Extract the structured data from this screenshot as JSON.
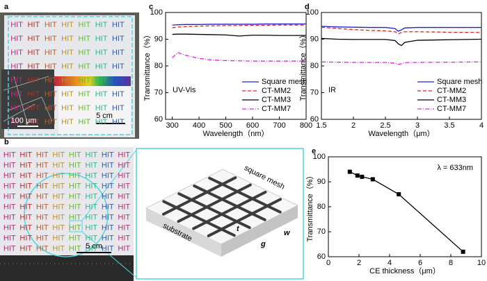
{
  "panels": {
    "a": "a",
    "b": "b"
  },
  "photos": {
    "hit_text": "HIT",
    "scale_a": "5 cm",
    "scale_micro": "100 μm",
    "scale_b": "5 cm"
  },
  "schematic": {
    "mesh": "square mesh",
    "substrate": "substrate",
    "t": "t",
    "w": "w",
    "g": "g"
  },
  "chart_data": [
    {
      "type": "line",
      "panel": "c",
      "xlabel": "Wavelength（nm）",
      "ylabel": "Transmittance（%）",
      "annotation": "UV-Vis",
      "x": [
        300,
        320,
        350,
        400,
        450,
        500,
        550,
        600,
        650,
        700,
        750,
        800
      ],
      "xlim": [
        275,
        800
      ],
      "xticks": [
        300,
        400,
        500,
        600,
        700,
        800
      ],
      "ylim": [
        60,
        100
      ],
      "yticks": [
        60,
        70,
        80,
        90,
        100
      ],
      "legend": "lower right",
      "series": [
        {
          "name": "Square mesh",
          "color": "#1f1fd0",
          "style": "solid",
          "values": [
            95.3,
            95.4,
            95.5,
            95.5,
            95.6,
            95.6,
            95.6,
            95.6,
            95.7,
            95.7,
            95.7,
            95.7
          ]
        },
        {
          "name": "CT-MM2",
          "color": "#e02020",
          "style": "dashed",
          "values": [
            94.3,
            94.5,
            94.7,
            94.9,
            95.0,
            95.1,
            95.1,
            95.2,
            95.2,
            95.3,
            95.3,
            95.3
          ]
        },
        {
          "name": "CT-MM3",
          "color": "#000000",
          "style": "solid",
          "values": [
            91.8,
            91.9,
            91.9,
            91.8,
            91.7,
            91.6,
            91.2,
            91.5,
            91.5,
            91.4,
            91.4,
            91.4
          ]
        },
        {
          "name": "CT-MM7",
          "color": "#e020e0",
          "style": "dashdot",
          "values": [
            83,
            85,
            84,
            82.8,
            82.2,
            82,
            81.9,
            81.8,
            81.8,
            81.8,
            81.8,
            81.8
          ]
        }
      ]
    },
    {
      "type": "line",
      "panel": "d",
      "xlabel": "Wavelength（μm）",
      "ylabel": "Transmittance（%）",
      "annotation": "IR",
      "x": [
        1.5,
        1.75,
        2,
        2.25,
        2.5,
        2.65,
        2.7,
        2.75,
        2.8,
        3,
        3.5,
        4
      ],
      "xlim": [
        1.5,
        4
      ],
      "xticks": [
        1.5,
        2,
        2.5,
        3,
        3.5,
        4
      ],
      "ylim": [
        60,
        100
      ],
      "yticks": [
        60,
        70,
        80,
        90,
        100
      ],
      "legend": "lower right",
      "series": [
        {
          "name": "Square mesh",
          "color": "#1f1fd0",
          "style": "solid",
          "values": [
            94.8,
            94.6,
            94.5,
            94.4,
            94.4,
            94.0,
            93.0,
            93.5,
            94.2,
            94.4,
            94.4,
            94.4
          ]
        },
        {
          "name": "CT-MM2",
          "color": "#e02020",
          "style": "dashed",
          "values": [
            94.5,
            94.0,
            93.6,
            93.3,
            93.1,
            92.8,
            92.0,
            92.5,
            92.8,
            92.8,
            92.6,
            92.5
          ]
        },
        {
          "name": "CT-MM3",
          "color": "#000000",
          "style": "solid",
          "values": [
            90.3,
            90.0,
            89.9,
            89.9,
            89.9,
            89.5,
            88.3,
            87.6,
            88.8,
            89.6,
            89.8,
            90.0
          ]
        },
        {
          "name": "CT-MM7",
          "color": "#e020e0",
          "style": "dashdot",
          "values": [
            81.5,
            81.4,
            81.3,
            81.3,
            81.3,
            81.0,
            80.6,
            80.8,
            81.2,
            81.3,
            81.4,
            81.5
          ]
        }
      ]
    },
    {
      "type": "scatter-line",
      "panel": "e",
      "xlabel": "CE thickness（μm）",
      "ylabel": "Transmittance（%）",
      "annotation": "λ = 633nm",
      "x": [
        1.4,
        1.9,
        2.2,
        2.9,
        4.6,
        8.8
      ],
      "xlim": [
        0,
        10
      ],
      "xticks": [
        0,
        2,
        4,
        6,
        8,
        10
      ],
      "ylim": [
        60,
        100
      ],
      "yticks": [
        60,
        70,
        80,
        90,
        100
      ],
      "series": [
        {
          "color": "#000000",
          "style": "solid",
          "values": [
            94,
            92.5,
            92,
            91,
            85,
            62
          ]
        }
      ]
    }
  ]
}
